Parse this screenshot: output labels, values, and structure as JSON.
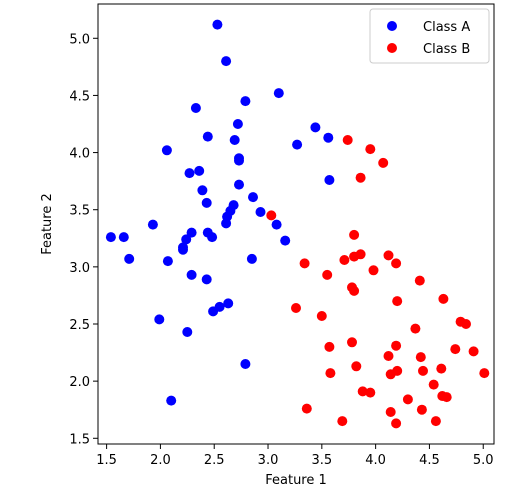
{
  "chart_data": {
    "type": "scatter",
    "xlabel": "Feature 1",
    "ylabel": "Feature 2",
    "xlim": [
      1.42,
      5.1
    ],
    "ylim": [
      1.45,
      5.3
    ],
    "xticks": [
      "1.5",
      "2.0",
      "2.5",
      "3.0",
      "3.5",
      "4.0",
      "4.5",
      "5.0"
    ],
    "yticks": [
      "1.5",
      "2.0",
      "2.5",
      "3.0",
      "3.5",
      "4.0",
      "4.5",
      "5.0"
    ],
    "grid": false,
    "legend_position": "top-right",
    "series": [
      {
        "name": "Class A",
        "color": "#0000ff",
        "points": [
          [
            2.53,
            5.12
          ],
          [
            2.61,
            4.8
          ],
          [
            2.79,
            4.45
          ],
          [
            3.1,
            4.52
          ],
          [
            2.33,
            4.39
          ],
          [
            2.06,
            4.02
          ],
          [
            2.44,
            4.14
          ],
          [
            2.72,
            4.25
          ],
          [
            2.69,
            4.11
          ],
          [
            2.73,
            3.95
          ],
          [
            2.73,
            3.93
          ],
          [
            2.27,
            3.82
          ],
          [
            2.36,
            3.84
          ],
          [
            2.39,
            3.67
          ],
          [
            2.43,
            3.56
          ],
          [
            2.73,
            3.72
          ],
          [
            2.86,
            3.61
          ],
          [
            2.68,
            3.54
          ],
          [
            2.65,
            3.49
          ],
          [
            2.62,
            3.44
          ],
          [
            2.61,
            3.38
          ],
          [
            2.93,
            3.48
          ],
          [
            3.08,
            3.37
          ],
          [
            3.16,
            3.23
          ],
          [
            2.85,
            3.07
          ],
          [
            1.54,
            3.26
          ],
          [
            1.66,
            3.26
          ],
          [
            1.71,
            3.07
          ],
          [
            1.93,
            3.37
          ],
          [
            2.07,
            3.05
          ],
          [
            2.21,
            3.15
          ],
          [
            2.21,
            3.17
          ],
          [
            2.24,
            3.24
          ],
          [
            2.29,
            3.3
          ],
          [
            2.44,
            3.3
          ],
          [
            2.48,
            3.26
          ],
          [
            2.29,
            2.93
          ],
          [
            2.43,
            2.89
          ],
          [
            1.99,
            2.54
          ],
          [
            2.25,
            2.43
          ],
          [
            2.49,
            2.61
          ],
          [
            2.55,
            2.65
          ],
          [
            2.63,
            2.68
          ],
          [
            2.79,
            2.15
          ],
          [
            2.1,
            1.83
          ],
          [
            3.27,
            4.07
          ],
          [
            3.44,
            4.22
          ],
          [
            3.56,
            4.13
          ],
          [
            3.57,
            3.76
          ]
        ]
      },
      {
        "name": "Class B",
        "color": "#ff0000",
        "points": [
          [
            3.74,
            4.11
          ],
          [
            3.95,
            4.03
          ],
          [
            4.07,
            3.91
          ],
          [
            3.86,
            3.78
          ],
          [
            3.03,
            3.45
          ],
          [
            3.8,
            3.28
          ],
          [
            3.8,
            3.09
          ],
          [
            3.86,
            3.11
          ],
          [
            3.71,
            3.06
          ],
          [
            4.12,
            3.1
          ],
          [
            4.19,
            3.03
          ],
          [
            3.98,
            2.97
          ],
          [
            3.34,
            3.03
          ],
          [
            3.55,
            2.93
          ],
          [
            3.78,
            2.82
          ],
          [
            3.8,
            2.79
          ],
          [
            4.41,
            2.88
          ],
          [
            4.2,
            2.7
          ],
          [
            4.63,
            2.72
          ],
          [
            3.26,
            2.64
          ],
          [
            3.5,
            2.57
          ],
          [
            4.79,
            2.52
          ],
          [
            4.84,
            2.5
          ],
          [
            4.37,
            2.46
          ],
          [
            3.78,
            2.34
          ],
          [
            3.57,
            2.3
          ],
          [
            4.19,
            2.31
          ],
          [
            4.74,
            2.28
          ],
          [
            4.91,
            2.26
          ],
          [
            4.12,
            2.22
          ],
          [
            4.42,
            2.21
          ],
          [
            4.61,
            2.11
          ],
          [
            4.44,
            2.09
          ],
          [
            4.2,
            2.09
          ],
          [
            3.82,
            2.13
          ],
          [
            4.14,
            2.06
          ],
          [
            3.58,
            2.07
          ],
          [
            5.01,
            2.07
          ],
          [
            4.54,
            1.97
          ],
          [
            3.88,
            1.91
          ],
          [
            3.95,
            1.9
          ],
          [
            4.3,
            1.84
          ],
          [
            4.62,
            1.87
          ],
          [
            4.66,
            1.86
          ],
          [
            3.36,
            1.76
          ],
          [
            4.14,
            1.73
          ],
          [
            4.43,
            1.75
          ],
          [
            3.69,
            1.65
          ],
          [
            4.19,
            1.63
          ],
          [
            4.56,
            1.65
          ]
        ]
      }
    ]
  }
}
